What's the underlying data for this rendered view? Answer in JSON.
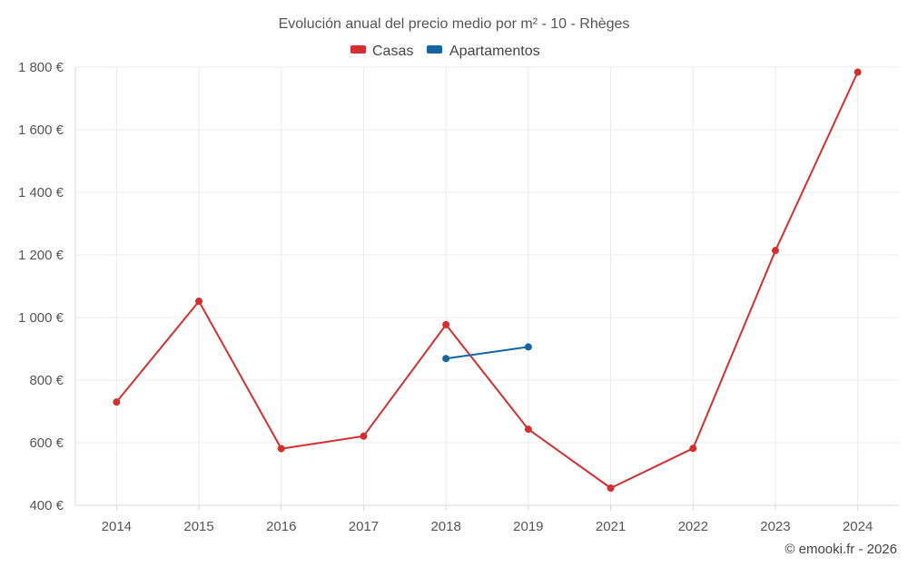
{
  "chart_data": {
    "type": "line",
    "title": "Evolución anual del precio medio por m² - 10 - Rhèges",
    "categories": [
      "2014",
      "2015",
      "2016",
      "2017",
      "2018",
      "2019",
      "2021",
      "2022",
      "2023",
      "2024"
    ],
    "series": [
      {
        "name": "Casas",
        "color": "#d32f2f",
        "values": [
          730,
          1052,
          581,
          621,
          977,
          643,
          455,
          582,
          1214,
          1784
        ]
      },
      {
        "name": "Apartamentos",
        "color": "#1565a0",
        "values": [
          null,
          null,
          null,
          null,
          869,
          906,
          null,
          null,
          null,
          null
        ]
      }
    ],
    "ylim": [
      400,
      1800
    ],
    "yticks": [
      400,
      600,
      800,
      1000,
      1200,
      1400,
      1600,
      1800
    ],
    "ytick_labels": [
      "400 €",
      "600 €",
      "800 €",
      "1 000 €",
      "1 200 €",
      "1 400 €",
      "1 600 €",
      "1 800 €"
    ],
    "xlabel": "",
    "ylabel": "",
    "grid": true,
    "legend": "top-center",
    "credit": "© emooki.fr - 2026"
  }
}
